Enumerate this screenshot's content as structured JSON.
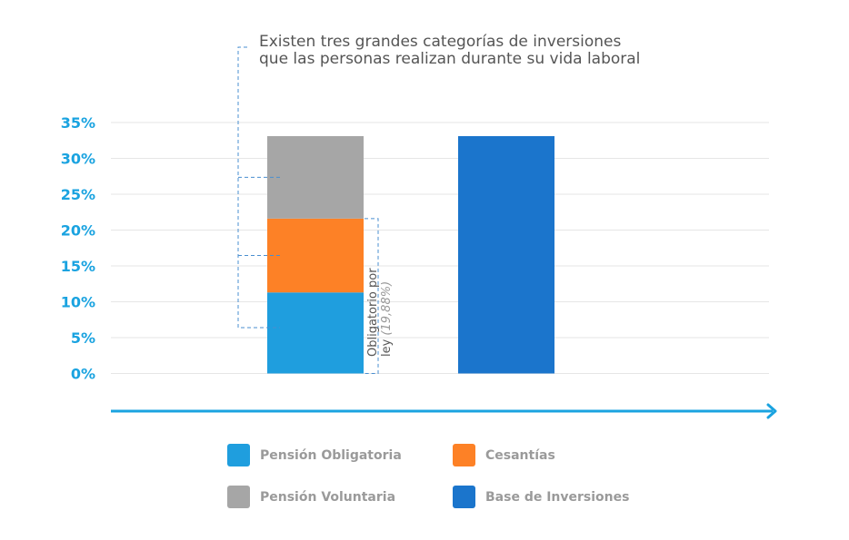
{
  "chart_data": {
    "type": "bar",
    "title": "",
    "xlabel": "",
    "ylabel": "",
    "ylim": [
      0,
      35
    ],
    "yticks": [
      "0%",
      "5%",
      "10%",
      "15%",
      "20%",
      "25%",
      "30%",
      "35%"
    ],
    "grid": true,
    "legend_position": "bottom",
    "bars": [
      {
        "stacked": true,
        "segments": [
          {
            "series": "Pensión Obligatoria",
            "value": 11.3
          },
          {
            "series": "Cesantías",
            "value": 10.3
          },
          {
            "series": "Pensión Voluntaria",
            "value": 11.5
          }
        ]
      },
      {
        "stacked": false,
        "segments": [
          {
            "series": "Base de Inversiones",
            "value": 33.1
          }
        ]
      }
    ],
    "annotations": {
      "top": "Existen tres grandes categorías de inversiones\nque las personas realizan durante su vida laboral",
      "side_line1": "Obligatorio por",
      "side_line2_prefix": "ley ",
      "side_line2_value": "(19,88%)"
    },
    "legend": [
      {
        "name": "Pensión Obligatoria",
        "color": "#1f9ede"
      },
      {
        "name": "Cesantías",
        "color": "#fd8126"
      },
      {
        "name": "Pensión Voluntaria",
        "color": "#a6a6a6"
      },
      {
        "name": "Base de Inversiones",
        "color": "#1b75cc"
      }
    ],
    "colors": {
      "axis_labels": "#1aa3e0",
      "arrow": "#1aa3e0",
      "grid": "#e6e6e6",
      "bracket": "#4a8fd0",
      "text": "#555555"
    }
  }
}
